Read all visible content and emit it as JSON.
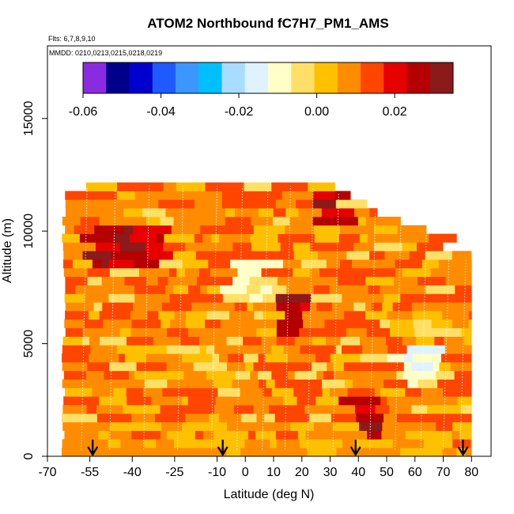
{
  "chart_data": {
    "type": "heatmap",
    "title": "ATOM2 Northbound fC7H7_PM1_AMS",
    "flights_label": "Flts: 6,7,8,9,10",
    "mmdd_label": "MMDD: 0210,0213,0215,0218,0219",
    "xlabel": "Latitude (deg N)",
    "ylabel": "Altitude (m)",
    "xlim": [
      -70,
      85
    ],
    "ylim": [
      0,
      17500
    ],
    "x_ticks": [
      -70,
      -55,
      -40,
      -25,
      -10,
      0,
      10,
      20,
      30,
      40,
      50,
      60,
      70,
      80
    ],
    "y_ticks": [
      0,
      5000,
      10000,
      15000
    ],
    "colorbar": {
      "range": [
        -0.06,
        0.035
      ],
      "ticks": [
        -0.06,
        -0.04,
        -0.02,
        0.0,
        0.02
      ],
      "tick_labels": [
        "-0.06",
        "-0.04",
        "-0.02",
        "0.00",
        "0.02"
      ],
      "colors": [
        "#8a2be2",
        "#00008b",
        "#0000cd",
        "#1e5aff",
        "#3c96ff",
        "#00bfff",
        "#a8ddff",
        "#dff2ff",
        "#ffffc8",
        "#ffe066",
        "#ffc000",
        "#ff8c00",
        "#ff4500",
        "#e60000",
        "#b40000",
        "#8b1a1a"
      ]
    },
    "profile_arrows_lat": [
      -54,
      -8,
      39,
      77
    ],
    "data_extent": {
      "lat": [
        -65,
        80
      ],
      "alt": [
        0,
        12500
      ]
    },
    "notable_values": [
      {
        "lat_range": [
          -55,
          -30
        ],
        "alt": 9200,
        "value": 0.03
      },
      {
        "lat_range": [
          14,
          22
        ],
        "alt": 6200,
        "value": 0.03
      },
      {
        "lat_range": [
          27,
          37
        ],
        "alt": 10800,
        "value": 0.028
      },
      {
        "lat_range": [
          38,
          46
        ],
        "alt": 1500,
        "value": 0.03
      },
      {
        "lat_range": [
          55,
          70
        ],
        "alt": 3800,
        "value": -0.015
      },
      {
        "lat_range": [
          -5,
          10
        ],
        "alt": 7500,
        "value": -0.008
      }
    ]
  }
}
